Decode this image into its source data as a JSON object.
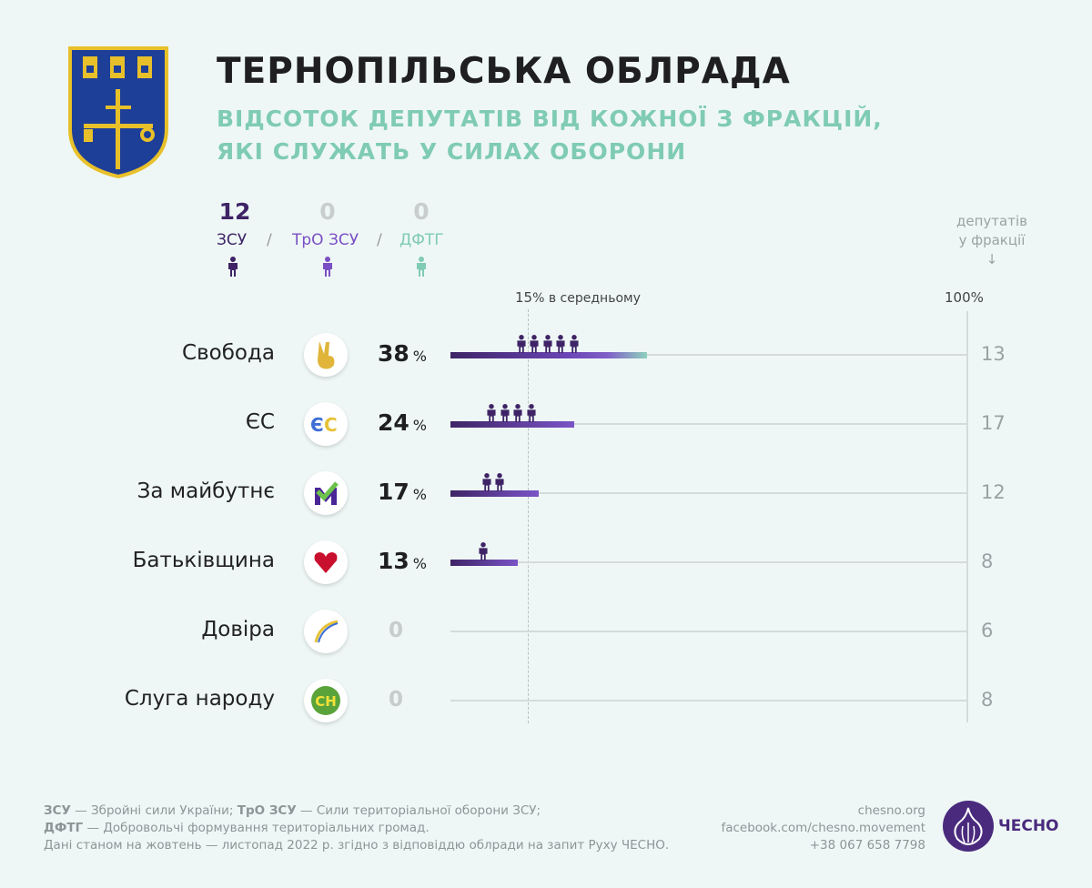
{
  "header": {
    "title": "ТЕРНОПІЛЬСЬКА ОБЛРАДА",
    "subtitle_line1": "ВІДСОТОК ДЕПУТАТІВ ВІД КОЖНОЇ З ФРАКЦІЙ,",
    "subtitle_line2": "ЯКІ СЛУЖАТЬ У СИЛАХ ОБОРОНИ"
  },
  "legend": [
    {
      "count": "12",
      "label": "ЗСУ",
      "color": "#3e2466"
    },
    {
      "count": "0",
      "label": "ТрО ЗСУ",
      "color": "#7a4fc4"
    },
    {
      "count": "0",
      "label": "ДФТГ",
      "color": "#7fcbb3"
    }
  ],
  "legend_sep": "/",
  "totals_header": {
    "line1": "депутатів",
    "line2": "у фракції",
    "arrow": "↓"
  },
  "chart_data": {
    "type": "bar",
    "orientation": "horizontal",
    "xlim": [
      0,
      100
    ],
    "average": {
      "value": 15,
      "label_value": "15",
      "label_text": "% в середньому"
    },
    "max_label": "100%",
    "unit": "%",
    "categories": [
      "Свобода",
      "ЄС",
      "За майбутнє",
      "Батьківщина",
      "Довіра",
      "Слуга народу"
    ],
    "values": [
      38,
      24,
      17,
      13,
      0,
      0
    ],
    "value_labels": [
      "38",
      "24",
      "17",
      "13",
      "0",
      "0"
    ],
    "serving_deputies": [
      5,
      4,
      2,
      1,
      0,
      0
    ],
    "faction_totals": [
      "13",
      "17",
      "12",
      "8",
      "6",
      "8"
    ],
    "party_logos": [
      "victory-hand-icon",
      "es-logo-icon",
      "za-maibutnie-logo-icon",
      "heart-logo-icon",
      "dovira-logo-icon",
      "sluha-narodu-logo-icon"
    ],
    "sluha_logo_text": "СН"
  },
  "footer": {
    "line1_a": "ЗСУ",
    "line1_b": " — Збройні сили України; ",
    "line1_c": "ТрО ЗСУ",
    "line1_d": " — Сили територіальної оборони ЗСУ;",
    "line2_a": "ДФТГ",
    "line2_b": " — Добровольчі формування територіальних громад.",
    "line3": "Дані станом на жовтень — листопад 2022 р. згідно з відповіддю облради на запит Руху ЧЕСНО.",
    "site": "chesno.org",
    "facebook": "facebook.com/chesno.movement",
    "phone": "+38 067 658 7798",
    "brand": "ЧЕСНО"
  }
}
